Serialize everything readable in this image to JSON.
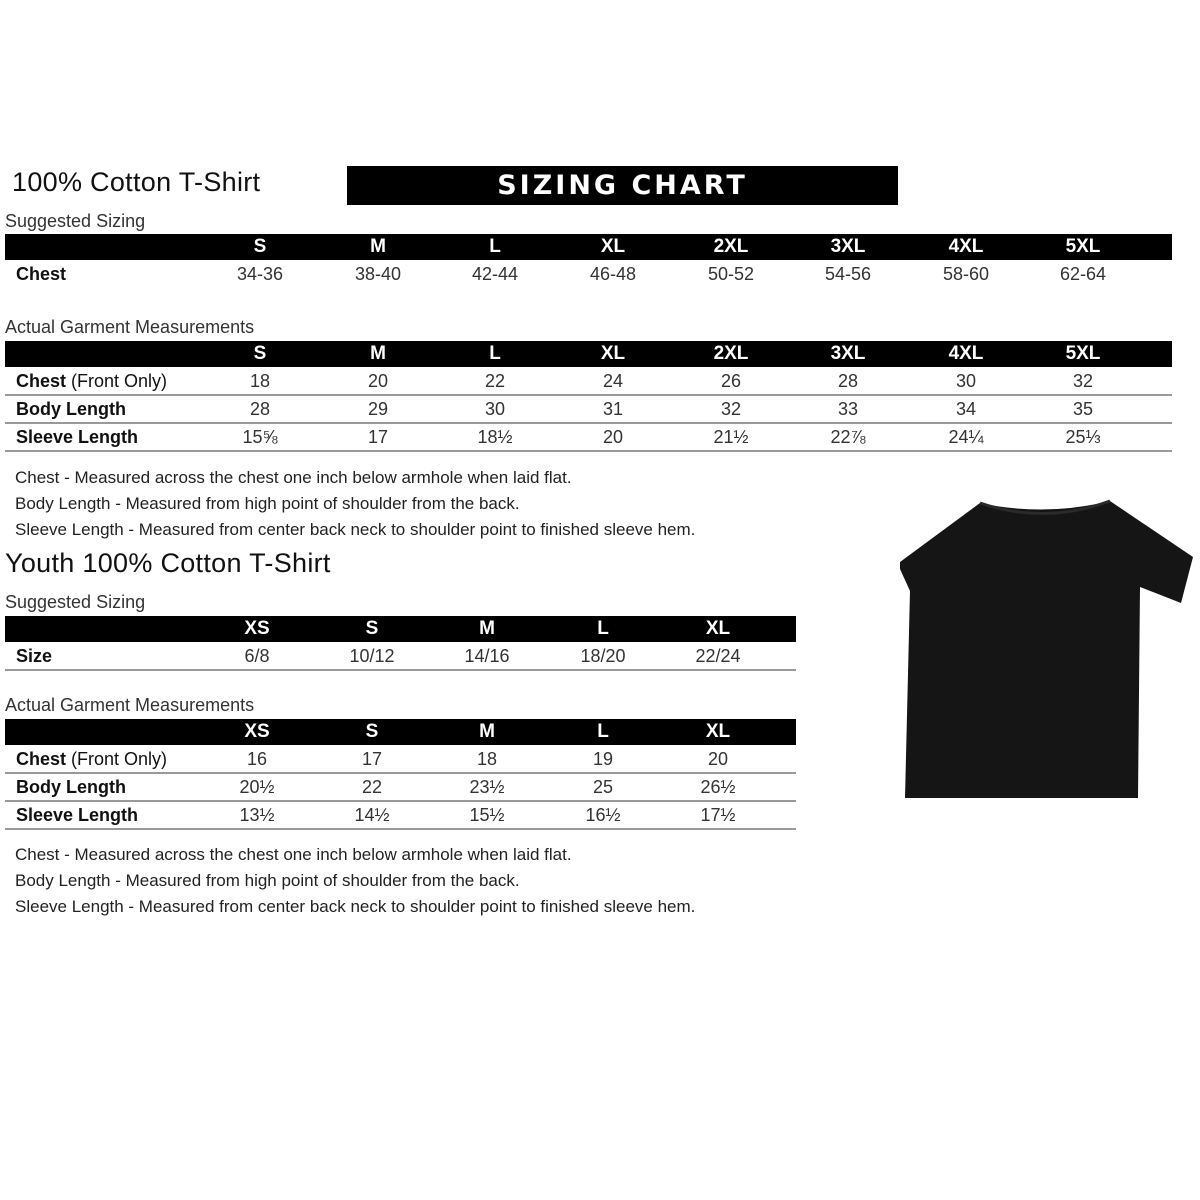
{
  "adult": {
    "title": "100% Cotton T-Shirt",
    "banner": "SIZING CHART",
    "suggested_label": "Suggested Sizing",
    "suggested": {
      "sizes": [
        "S",
        "M",
        "L",
        "XL",
        "2XL",
        "3XL",
        "4XL",
        "5XL"
      ],
      "rows": [
        {
          "label": "Chest",
          "label_extra": "",
          "values": [
            "34-36",
            "38-40",
            "42-44",
            "46-48",
            "50-52",
            "54-56",
            "58-60",
            "62-64"
          ]
        }
      ]
    },
    "actual_label": "Actual Garment Measurements",
    "actual": {
      "sizes": [
        "S",
        "M",
        "L",
        "XL",
        "2XL",
        "3XL",
        "4XL",
        "5XL"
      ],
      "rows": [
        {
          "label": "Chest",
          "label_extra": " (Front Only)",
          "values": [
            "18",
            "20",
            "22",
            "24",
            "26",
            "28",
            "30",
            "32"
          ]
        },
        {
          "label": "Body Length",
          "label_extra": "",
          "values": [
            "28",
            "29",
            "30",
            "31",
            "32",
            "33",
            "34",
            "35"
          ]
        },
        {
          "label": "Sleeve Length",
          "label_extra": "",
          "values": [
            "15⅝",
            "17",
            "18½",
            "20",
            "21½",
            "22⅞",
            "24¼",
            "25⅓"
          ]
        }
      ]
    },
    "notes": [
      "Chest - Measured across the chest one inch below armhole when laid flat.",
      "Body Length - Measured from high point of shoulder from the back.",
      "Sleeve Length - Measured from center back neck to shoulder point to finished sleeve hem."
    ]
  },
  "youth": {
    "title": "Youth 100% Cotton T-Shirt",
    "suggested_label": "Suggested Sizing",
    "suggested": {
      "sizes": [
        "XS",
        "S",
        "M",
        "L",
        "XL"
      ],
      "rows": [
        {
          "label": "Size",
          "label_extra": "",
          "values": [
            "6/8",
            "10/12",
            "14/16",
            "18/20",
            "22/24"
          ]
        }
      ]
    },
    "actual_label": "Actual Garment Measurements",
    "actual": {
      "sizes": [
        "XS",
        "S",
        "M",
        "L",
        "XL"
      ],
      "rows": [
        {
          "label": "Chest",
          "label_extra": " (Front Only)",
          "values": [
            "16",
            "17",
            "18",
            "19",
            "20"
          ]
        },
        {
          "label": "Body Length",
          "label_extra": "",
          "values": [
            "20½",
            "22",
            "23½",
            "25",
            "26½"
          ]
        },
        {
          "label": "Sleeve Length",
          "label_extra": "",
          "values": [
            "13½",
            "14½",
            "15½",
            "16½",
            "17½"
          ]
        }
      ]
    },
    "notes": [
      "Chest - Measured across the chest one inch below armhole when laid flat.",
      "Body Length - Measured from high point of shoulder from the back.",
      "Sleeve Length - Measured from center back neck to shoulder point to finished sleeve hem."
    ]
  },
  "tshirt_image": {
    "icon": "tshirt-icon",
    "color": "#141414"
  }
}
